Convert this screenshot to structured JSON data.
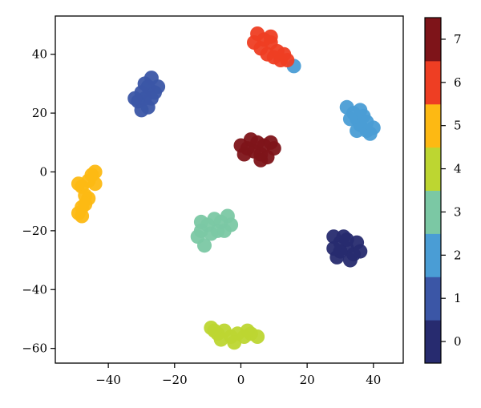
{
  "chart_data": {
    "type": "scatter",
    "title": "",
    "xlabel": "",
    "ylabel": "",
    "xlim": [
      -56,
      49
    ],
    "ylim": [
      -65,
      53
    ],
    "xticks": [
      -40,
      -20,
      0,
      20,
      40
    ],
    "xtick_labels": [
      "−40",
      "−20",
      "0",
      "20",
      "40"
    ],
    "yticks": [
      40,
      20,
      0,
      -20,
      -40,
      -60
    ],
    "ytick_labels": [
      "40",
      "20",
      "0",
      "−20",
      "−40",
      "−60"
    ],
    "grid": false,
    "colorbar": {
      "range": [
        -0.5,
        7.5
      ],
      "ticks": [
        0,
        1,
        2,
        3,
        4,
        5,
        6,
        7
      ],
      "tick_labels": [
        "0",
        "1",
        "2",
        "3",
        "4",
        "5",
        "6",
        "7"
      ],
      "colors": [
        "#272b6f",
        "#3b56a6",
        "#4a9dd5",
        "#7bc8a4",
        "#bdd631",
        "#fdb913",
        "#ee3e23",
        "#7e1419"
      ]
    },
    "clusters": [
      {
        "label": 0,
        "color": "#272b6f",
        "points": [
          [
            28,
            -22
          ],
          [
            30,
            -24
          ],
          [
            32,
            -26
          ],
          [
            34,
            -28
          ],
          [
            29,
            -29
          ],
          [
            31,
            -22
          ],
          [
            35,
            -24
          ],
          [
            33,
            -30
          ],
          [
            30,
            -27
          ],
          [
            36,
            -27
          ],
          [
            28,
            -26
          ],
          [
            32,
            -23
          ]
        ]
      },
      {
        "label": 1,
        "color": "#3b56a6",
        "points": [
          [
            -31,
            24
          ],
          [
            -30,
            21
          ],
          [
            -29,
            25
          ],
          [
            -28,
            29
          ],
          [
            -27,
            32
          ],
          [
            -26,
            27
          ],
          [
            -28,
            22
          ],
          [
            -30,
            27
          ],
          [
            -32,
            25
          ],
          [
            -25,
            29
          ],
          [
            -29,
            30
          ],
          [
            -27,
            25
          ]
        ]
      },
      {
        "label": 2,
        "color": "#4a9dd5",
        "points": [
          [
            32,
            22
          ],
          [
            34,
            20
          ],
          [
            35,
            18
          ],
          [
            36,
            16
          ],
          [
            38,
            14
          ],
          [
            39,
            13
          ],
          [
            37,
            19
          ],
          [
            40,
            15
          ],
          [
            33,
            18
          ],
          [
            36,
            21
          ],
          [
            38,
            17
          ],
          [
            35,
            14
          ],
          [
            16,
            36
          ]
        ]
      },
      {
        "label": 3,
        "color": "#7bc8a4",
        "points": [
          [
            -13,
            -22
          ],
          [
            -12,
            -20
          ],
          [
            -10,
            -18
          ],
          [
            -8,
            -16
          ],
          [
            -6,
            -17
          ],
          [
            -4,
            -15
          ],
          [
            -9,
            -21
          ],
          [
            -11,
            -25
          ],
          [
            -7,
            -20
          ],
          [
            -3,
            -18
          ],
          [
            -12,
            -17
          ],
          [
            -5,
            -20
          ]
        ]
      },
      {
        "label": 4,
        "color": "#bdd631",
        "points": [
          [
            -9,
            -53
          ],
          [
            -7,
            -55
          ],
          [
            -5,
            -54
          ],
          [
            -3,
            -56
          ],
          [
            -1,
            -55
          ],
          [
            1,
            -56
          ],
          [
            3,
            -55
          ],
          [
            5,
            -56
          ],
          [
            -6,
            -57
          ],
          [
            -2,
            -58
          ],
          [
            -8,
            -54
          ],
          [
            2,
            -54
          ]
        ]
      },
      {
        "label": 5,
        "color": "#fdb913",
        "points": [
          [
            -49,
            -14
          ],
          [
            -48,
            -12
          ],
          [
            -47,
            -8
          ],
          [
            -48,
            -5
          ],
          [
            -46,
            -3
          ],
          [
            -45,
            -1
          ],
          [
            -44,
            -4
          ],
          [
            -46,
            -9
          ],
          [
            -47,
            -11
          ],
          [
            -49,
            -4
          ],
          [
            -44,
            0
          ],
          [
            -48,
            -15
          ]
        ]
      },
      {
        "label": 6,
        "color": "#ee3e23",
        "points": [
          [
            5,
            47
          ],
          [
            7,
            45
          ],
          [
            9,
            44
          ],
          [
            6,
            42
          ],
          [
            8,
            40
          ],
          [
            10,
            39
          ],
          [
            12,
            38
          ],
          [
            14,
            38
          ],
          [
            11,
            41
          ],
          [
            4,
            44
          ],
          [
            13,
            40
          ],
          [
            9,
            46
          ]
        ]
      },
      {
        "label": 7,
        "color": "#7e1419",
        "points": [
          [
            0,
            9
          ],
          [
            2,
            8
          ],
          [
            4,
            7
          ],
          [
            6,
            6
          ],
          [
            8,
            5
          ],
          [
            10,
            8
          ],
          [
            3,
            11
          ],
          [
            5,
            10
          ],
          [
            7,
            9
          ],
          [
            1,
            6
          ],
          [
            9,
            10
          ],
          [
            6,
            4
          ]
        ]
      }
    ]
  }
}
